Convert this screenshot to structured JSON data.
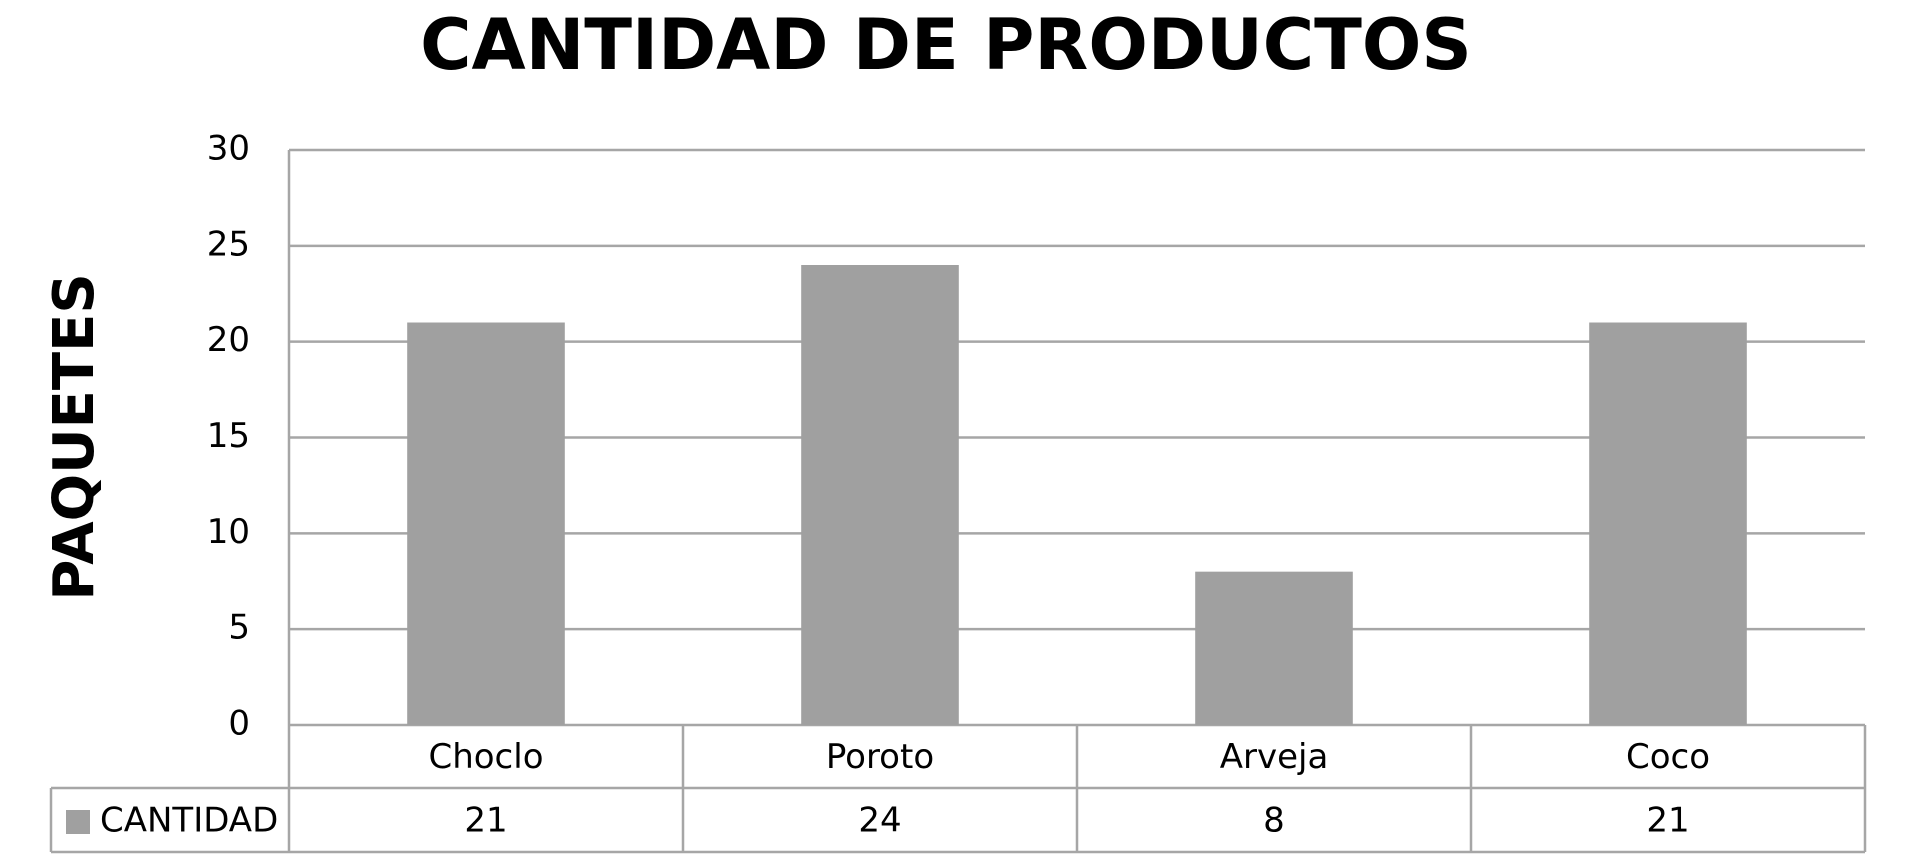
{
  "chart_data": {
    "type": "bar",
    "title": "CANTIDAD DE PRODUCTOS",
    "y_label": "PAQUETES",
    "categories": [
      "Choclo",
      "Poroto",
      "Arveja",
      "Coco"
    ],
    "series": [
      {
        "name": "CANTIDAD",
        "color": "#a0a0a0",
        "values": [
          21,
          24,
          8,
          21
        ]
      }
    ],
    "ylim": [
      0,
      30
    ],
    "yticks": [
      0,
      5,
      10,
      15,
      20,
      25,
      30
    ],
    "grid": true,
    "data_table": true
  }
}
